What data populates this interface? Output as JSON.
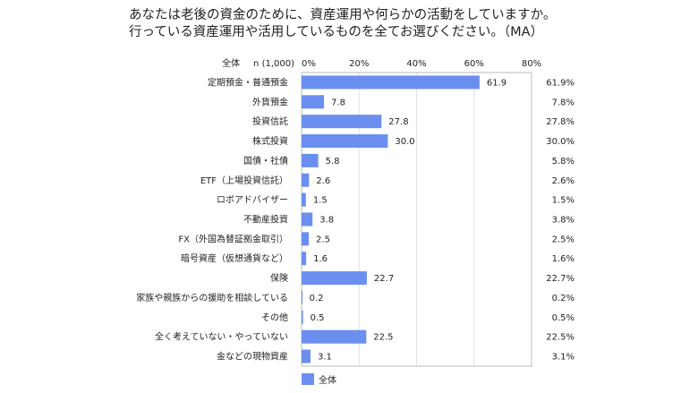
{
  "chart_data": {
    "type": "bar",
    "orientation": "horizontal",
    "title": [
      "あなたは老後の資金のために、資産運用や何らかの活動をしていますか。",
      "行っている資産運用や活用しているものを全てお選びください。（MA）"
    ],
    "header_label": "全体",
    "n_label": "n (1,000)",
    "xlim": [
      0,
      80
    ],
    "xticks": [
      "0%",
      "20%",
      "40%",
      "60%",
      "80%"
    ],
    "xtick_values": [
      0,
      20,
      40,
      60,
      80
    ],
    "grid": true,
    "legend_position": "bottom",
    "bar_color": "#6a8ff0",
    "categories": [
      "定期預金・普通預金",
      "外貨預金",
      "投資信託",
      "株式投資",
      "国債・社債",
      "ETF（上場投資信託）",
      "ロボアドバイザー",
      "不動産投資",
      "FX（外国為替証拠金取引）",
      "暗号資産（仮想通貨など）",
      "保険",
      "家族や親族からの援助を相談している",
      "その他",
      "全く考えていない・やっていない",
      "金などの現物資産"
    ],
    "series": [
      {
        "name": "全体",
        "values": [
          61.9,
          7.8,
          27.8,
          30.0,
          5.8,
          2.6,
          1.5,
          3.8,
          2.5,
          1.6,
          22.7,
          0.2,
          0.5,
          22.5,
          3.1
        ]
      }
    ],
    "right_labels": [
      "61.9%",
      "7.8%",
      "27.8%",
      "30.0%",
      "5.8%",
      "2.6%",
      "1.5%",
      "3.8%",
      "2.5%",
      "1.6%",
      "22.7%",
      "0.2%",
      "0.5%",
      "22.5%",
      "3.1%"
    ]
  }
}
